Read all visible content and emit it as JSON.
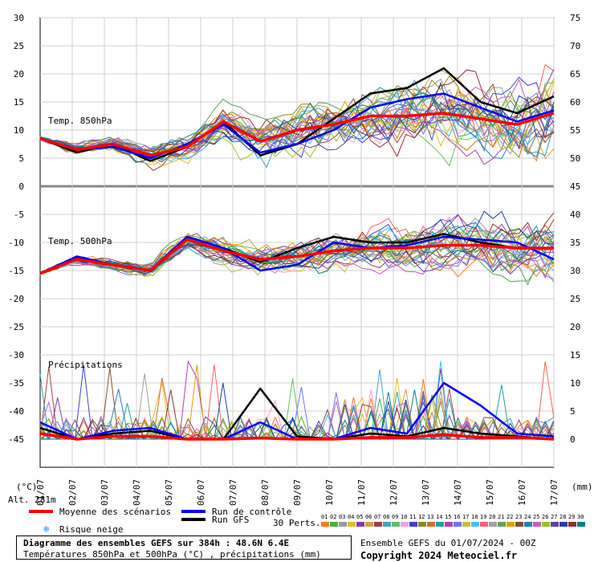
{
  "chart_data": {
    "type": "line",
    "x_dates": [
      "02/07",
      "03/07",
      "04/07",
      "05/07",
      "06/07",
      "07/07",
      "08/07",
      "09/07",
      "10/07",
      "11/07",
      "12/07",
      "13/07",
      "14/07",
      "15/07",
      "16/07",
      "17/07"
    ],
    "x_dates_first": "01/07",
    "left_axis_ticks": [
      "30",
      "25",
      "20",
      "15",
      "10",
      "5",
      "0",
      "-5",
      "-10",
      "-15",
      "-20",
      "-25",
      "-30",
      "-35",
      "-40",
      "-45"
    ],
    "right_axis_ticks": [
      "75",
      "70",
      "65",
      "60",
      "55",
      "50",
      "45",
      "40",
      "35",
      "30",
      "25",
      "20",
      "15",
      "10",
      "5",
      "0"
    ],
    "left_unit": "(°C)",
    "right_unit": "(mm)",
    "panels": {
      "t850": {
        "label": "Temp. 850hPa",
        "mean": [
          8.5,
          6.5,
          7.5,
          5.5,
          7,
          11.5,
          8,
          10,
          11,
          12.5,
          12.5,
          13,
          12,
          11,
          13
        ],
        "control": [
          8.5,
          6.5,
          7,
          5,
          7.5,
          11,
          6,
          7.5,
          10,
          14,
          15.5,
          16.5,
          14,
          11.5,
          13.5
        ],
        "gfs": [
          8.5,
          6,
          7.5,
          4.5,
          7,
          11.5,
          5.5,
          7.5,
          12,
          16.5,
          17.5,
          21,
          15,
          13,
          16
        ]
      },
      "t500": {
        "label": "Temp. 500hPa",
        "mean": [
          -15.5,
          -13,
          -14,
          -15,
          -9.5,
          -11.5,
          -13,
          -12.5,
          -11.5,
          -11,
          -11,
          -10.5,
          -10.5,
          -11,
          -11
        ],
        "control": [
          -15.5,
          -12.5,
          -14,
          -15,
          -9,
          -11,
          -15,
          -14,
          -10,
          -11,
          -10.5,
          -9,
          -9.5,
          -10,
          -13
        ],
        "gfs": [
          -15.5,
          -12.5,
          -14,
          -15,
          -9,
          -11,
          -13.5,
          -11,
          -9,
          -10,
          -10,
          -8.5,
          -10,
          -11,
          -11
        ]
      },
      "precip": {
        "label": "Précipitations",
        "mean": [
          1,
          0,
          0.5,
          0.5,
          0,
          0,
          0.2,
          0,
          0,
          0.3,
          0.3,
          0.8,
          0.3,
          0.3,
          0
        ],
        "control": [
          3,
          0,
          1.5,
          2,
          0,
          0,
          3,
          0,
          0,
          2,
          1,
          10,
          6,
          1,
          0.5
        ],
        "gfs": [
          2,
          0,
          1,
          1.5,
          0,
          0,
          9,
          0.5,
          0,
          1,
          0.5,
          2,
          1,
          0.5,
          0
        ]
      }
    }
  },
  "altitude": "Alt. 281m",
  "legend": {
    "mean": "Moyenne des scénarios",
    "control": "Run de contrôle",
    "gfs": "Run GFS",
    "snow": "Risque neige",
    "perts": "30 Perts.",
    "pert_labels": [
      "01",
      "02",
      "03",
      "04",
      "05",
      "06",
      "07",
      "08",
      "09",
      "10",
      "11",
      "12",
      "13",
      "14",
      "15",
      "16",
      "17",
      "18",
      "19",
      "20",
      "21",
      "22",
      "23",
      "24",
      "25",
      "26",
      "27",
      "28",
      "29",
      "30"
    ],
    "pert_colors": [
      "#f47a1f",
      "#48b040",
      "#9a9a9a",
      "#e3c020",
      "#7e3fa0",
      "#d4a04a",
      "#a04040",
      "#42a0c8",
      "#60c060",
      "#ff9fd0",
      "#3f3fd8",
      "#8a8a20",
      "#d07020",
      "#20a0a0",
      "#b040b0",
      "#7070ff",
      "#c0c040",
      "#40c0ff",
      "#ff6060",
      "#a0a0a0",
      "#60a060",
      "#e0a000",
      "#805030",
      "#2080c0",
      "#c060c0",
      "#a0c020",
      "#6040a0",
      "#2040a0",
      "#903030",
      "#008080"
    ]
  },
  "snow_color": "#1e90ff",
  "colors": {
    "mean": "#ff0000",
    "control": "#0000ff",
    "gfs": "#000000"
  },
  "footer": {
    "title": "Diagramme des ensembles GEFS sur 384h : 48.6N 6.4E",
    "subtitle": "Températures 850hPa et 500hPa (°C) , précipitations (mm)",
    "run_info": "Ensemble GEFS du 01/07/2024 - 00Z",
    "copyright": "Copyright 2024 Meteociel.fr"
  }
}
